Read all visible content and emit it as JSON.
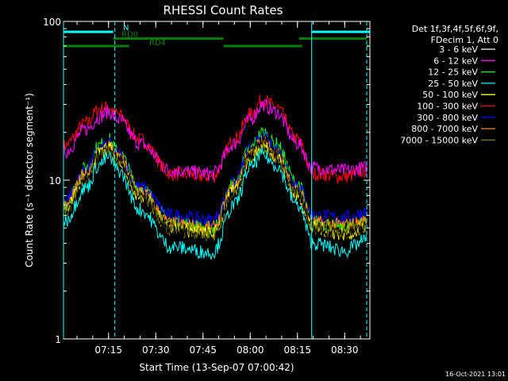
{
  "chart_data": {
    "type": "line",
    "title": "RHESSI Count Rates",
    "xlabel": "Start Time (13-Sep-07 07:00:42)",
    "ylabel": "Count Rate (s⁻¹ detector segment⁻¹)",
    "y_scale": "log",
    "ylim": [
      1,
      100
    ],
    "x_range": [
      "07:00:42",
      "08:38:00"
    ],
    "x_ticks": [
      "07:15",
      "07:30",
      "07:45",
      "08:00",
      "08:15",
      "08:30"
    ],
    "y_ticks": [
      "1",
      "10",
      "100"
    ],
    "legend_position": "right",
    "legend_header": [
      "Det 1f,3f,4f,5f,6f,9f,",
      "FDecim 1, Att 0"
    ],
    "series": [
      {
        "name": "3 - 6 keV",
        "color": "#000000",
        "x": [
          "07:01",
          "07:08",
          "07:12",
          "07:15",
          "07:18",
          "07:25",
          "07:35",
          "07:48",
          "07:55",
          "08:00",
          "08:04",
          "08:08",
          "08:15",
          "08:20",
          "08:30",
          "08:37"
        ],
        "y": [
          6.0,
          10.0,
          14.5,
          16.0,
          13.5,
          8.0,
          4.8,
          4.2,
          8.5,
          14.0,
          18.0,
          15.0,
          8.5,
          5.0,
          4.6,
          5.0
        ]
      },
      {
        "name": "6 - 12 keV",
        "color": "#ff00ff",
        "x": [
          "07:01",
          "07:08",
          "07:12",
          "07:15",
          "07:18",
          "07:25",
          "07:35",
          "07:48",
          "07:55",
          "08:00",
          "08:04",
          "08:08",
          "08:15",
          "08:20",
          "08:30",
          "08:37"
        ],
        "y": [
          15.0,
          21.0,
          25.0,
          27.0,
          24.0,
          17.0,
          11.5,
          11.0,
          17.0,
          24.0,
          30.0,
          27.0,
          17.0,
          12.0,
          11.5,
          12.0
        ]
      },
      {
        "name": "12 - 25 keV",
        "color": "#00ff00",
        "x": [
          "07:01",
          "07:08",
          "07:12",
          "07:15",
          "07:18",
          "07:25",
          "07:35",
          "07:48",
          "07:55",
          "08:00",
          "08:04",
          "08:08",
          "08:15",
          "08:20",
          "08:30",
          "08:37"
        ],
        "y": [
          7.0,
          12.0,
          16.5,
          18.0,
          15.0,
          9.0,
          5.5,
          5.0,
          9.5,
          16.0,
          20.0,
          17.0,
          9.5,
          5.5,
          5.0,
          5.5
        ]
      },
      {
        "name": "25 - 50 keV",
        "color": "#00ffff",
        "x": [
          "07:01",
          "07:08",
          "07:12",
          "07:15",
          "07:18",
          "07:25",
          "07:35",
          "07:48",
          "07:55",
          "08:00",
          "08:04",
          "08:08",
          "08:15",
          "08:20",
          "08:30",
          "08:37"
        ],
        "y": [
          5.5,
          9.0,
          12.5,
          14.0,
          11.5,
          6.5,
          3.8,
          3.5,
          7.0,
          12.0,
          14.5,
          12.5,
          7.0,
          4.0,
          3.6,
          4.2
        ]
      },
      {
        "name": "50 - 100 keV",
        "color": "#ffff00",
        "x": [
          "07:01",
          "07:08",
          "07:12",
          "07:15",
          "07:18",
          "07:25",
          "07:35",
          "07:48",
          "07:55",
          "08:00",
          "08:04",
          "08:08",
          "08:15",
          "08:20",
          "08:30",
          "08:37"
        ],
        "y": [
          6.5,
          10.5,
          14.5,
          16.0,
          13.5,
          8.0,
          5.0,
          4.6,
          8.5,
          14.0,
          16.5,
          14.5,
          8.0,
          5.0,
          4.6,
          5.0
        ]
      },
      {
        "name": "100 - 300 keV",
        "color": "#ff0000",
        "x": [
          "07:01",
          "07:08",
          "07:12",
          "07:15",
          "07:18",
          "07:25",
          "07:35",
          "07:48",
          "07:55",
          "08:00",
          "08:04",
          "08:08",
          "08:15",
          "08:20",
          "08:30",
          "08:37"
        ],
        "y": [
          16.5,
          23.0,
          28.0,
          29.0,
          26.0,
          18.0,
          11.0,
          10.5,
          18.0,
          26.0,
          32.0,
          29.0,
          18.0,
          11.0,
          10.5,
          11.5
        ]
      },
      {
        "name": "300 - 800 keV",
        "color": "#0000ff",
        "x": [
          "07:01",
          "07:08",
          "07:12",
          "07:15",
          "07:18",
          "07:25",
          "07:35",
          "07:48",
          "07:55",
          "08:00",
          "08:04",
          "08:08",
          "08:15",
          "08:20",
          "08:30",
          "08:37"
        ],
        "y": [
          7.5,
          11.5,
          15.5,
          17.0,
          14.5,
          9.0,
          6.0,
          5.6,
          9.5,
          15.5,
          18.5,
          16.0,
          9.5,
          6.0,
          5.8,
          6.3
        ]
      },
      {
        "name": "800 - 7000 keV",
        "color": "#ff8c00",
        "x": [
          "07:01",
          "07:08",
          "07:12",
          "07:15",
          "07:18",
          "07:25",
          "07:35",
          "07:48",
          "07:55",
          "08:00",
          "08:04",
          "08:08",
          "08:15",
          "08:20",
          "08:30",
          "08:37"
        ],
        "y": [
          6.8,
          11.0,
          15.0,
          16.5,
          14.0,
          8.5,
          5.3,
          5.0,
          9.0,
          15.0,
          17.5,
          15.0,
          8.8,
          5.4,
          5.2,
          5.5
        ]
      },
      {
        "name": "7000 - 15000 keV",
        "color": "#808000",
        "x": [
          "07:01",
          "07:08",
          "07:12",
          "07:15",
          "07:18",
          "07:25",
          "07:35",
          "07:48",
          "07:55",
          "08:00",
          "08:04",
          "08:08",
          "08:15",
          "08:20",
          "08:30",
          "08:37"
        ],
        "y": [
          6.2,
          10.2,
          14.0,
          15.5,
          13.0,
          7.8,
          4.9,
          4.5,
          8.2,
          13.8,
          16.5,
          14.2,
          8.2,
          5.0,
          4.7,
          5.1
        ]
      }
    ],
    "state_flags": [
      {
        "name": "N",
        "color": "#00ffff",
        "level": 86,
        "segments": [
          [
            "07:00:42",
            "07:16:30"
          ],
          [
            "08:19:30",
            "08:38:00"
          ]
        ]
      },
      {
        "name": "RD0",
        "color": "#008000",
        "level": 78,
        "segments": [
          [
            "07:16:30",
            "07:51:30"
          ],
          [
            "08:15:30",
            "08:37:00"
          ]
        ]
      },
      {
        "name": "RD4",
        "color": "#008000",
        "level": 70,
        "segments": [
          [
            "07:00:42",
            "07:21:30"
          ],
          [
            "07:51:30",
            "08:16:30"
          ],
          [
            "08:37:00",
            "08:38:00"
          ]
        ]
      }
    ],
    "vertical_markers": [
      {
        "time": "07:00:42",
        "style": "solid",
        "color": "#00ffff"
      },
      {
        "time": "07:17:00",
        "style": "dashed",
        "color": "#00ffff"
      },
      {
        "time": "08:19:30",
        "style": "solid",
        "color": "#00ffff"
      },
      {
        "time": "08:37:00",
        "style": "dashed",
        "color": "#00ffff"
      }
    ]
  },
  "footer": {
    "timestamp": "16-Oct-2021 13:01"
  }
}
